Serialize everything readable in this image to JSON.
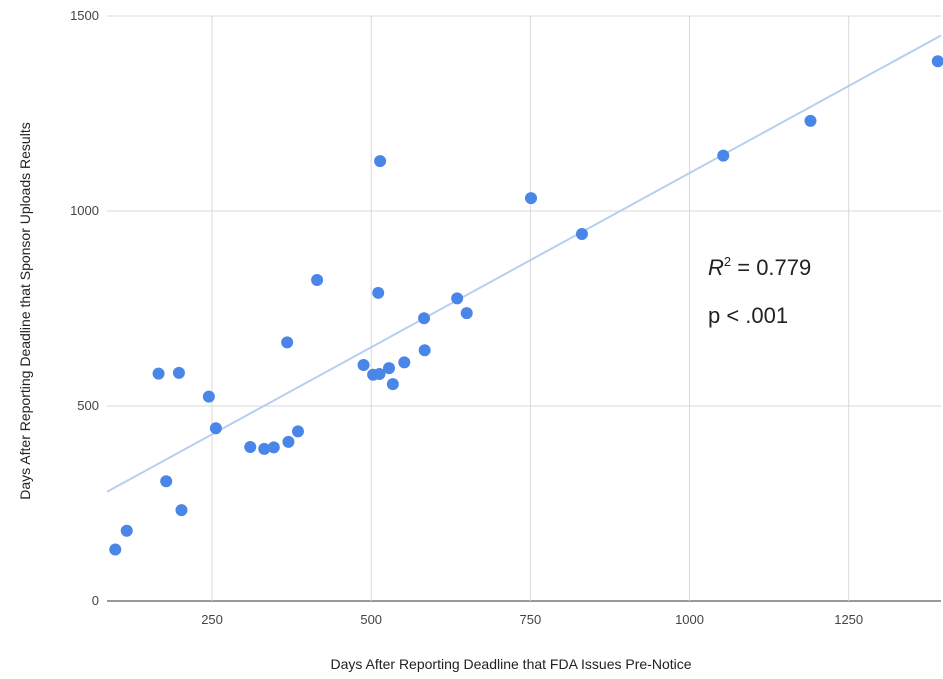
{
  "chart_data": {
    "type": "scatter",
    "xlabel": "Days After Reporting Deadline that FDA Issues Pre-Notice",
    "ylabel": "Days After Reporting Deadline that Sponsor Uploads Results",
    "xlim": [
      85,
      1395
    ],
    "ylim": [
      0,
      1500
    ],
    "x_ticks": [
      250,
      500,
      750,
      1000,
      1250
    ],
    "y_ticks": [
      0,
      500,
      1000,
      1500
    ],
    "x_tick_labels": [
      "250",
      "500",
      "750",
      "1000",
      "1250"
    ],
    "y_tick_labels": [
      "0",
      "500",
      "1000",
      "1500"
    ],
    "grid": true,
    "point_color": "#4a86e8",
    "trendline_color": "#b7cff0",
    "trendline": {
      "x": [
        85,
        1395
      ],
      "y": [
        280,
        1450
      ]
    },
    "annotations": {
      "r2_label": "R",
      "r2_exp": "2",
      "r2_value": " = 0.779",
      "p_value": "p < .001"
    },
    "points": [
      {
        "x": 98,
        "y": 132
      },
      {
        "x": 116,
        "y": 180
      },
      {
        "x": 166,
        "y": 583
      },
      {
        "x": 178,
        "y": 307
      },
      {
        "x": 198,
        "y": 585
      },
      {
        "x": 202,
        "y": 233
      },
      {
        "x": 245,
        "y": 524
      },
      {
        "x": 256,
        "y": 443
      },
      {
        "x": 310,
        "y": 395
      },
      {
        "x": 332,
        "y": 390
      },
      {
        "x": 347,
        "y": 394
      },
      {
        "x": 368,
        "y": 663
      },
      {
        "x": 370,
        "y": 408
      },
      {
        "x": 385,
        "y": 435
      },
      {
        "x": 415,
        "y": 823
      },
      {
        "x": 488,
        "y": 605
      },
      {
        "x": 503,
        "y": 580
      },
      {
        "x": 511,
        "y": 790
      },
      {
        "x": 513,
        "y": 582
      },
      {
        "x": 514,
        "y": 1128
      },
      {
        "x": 528,
        "y": 597
      },
      {
        "x": 534,
        "y": 556
      },
      {
        "x": 552,
        "y": 612
      },
      {
        "x": 583,
        "y": 725
      },
      {
        "x": 584,
        "y": 643
      },
      {
        "x": 635,
        "y": 776
      },
      {
        "x": 650,
        "y": 738
      },
      {
        "x": 751,
        "y": 1033
      },
      {
        "x": 831,
        "y": 941
      },
      {
        "x": 1053,
        "y": 1142
      },
      {
        "x": 1190,
        "y": 1231
      },
      {
        "x": 1390,
        "y": 1384
      }
    ]
  }
}
